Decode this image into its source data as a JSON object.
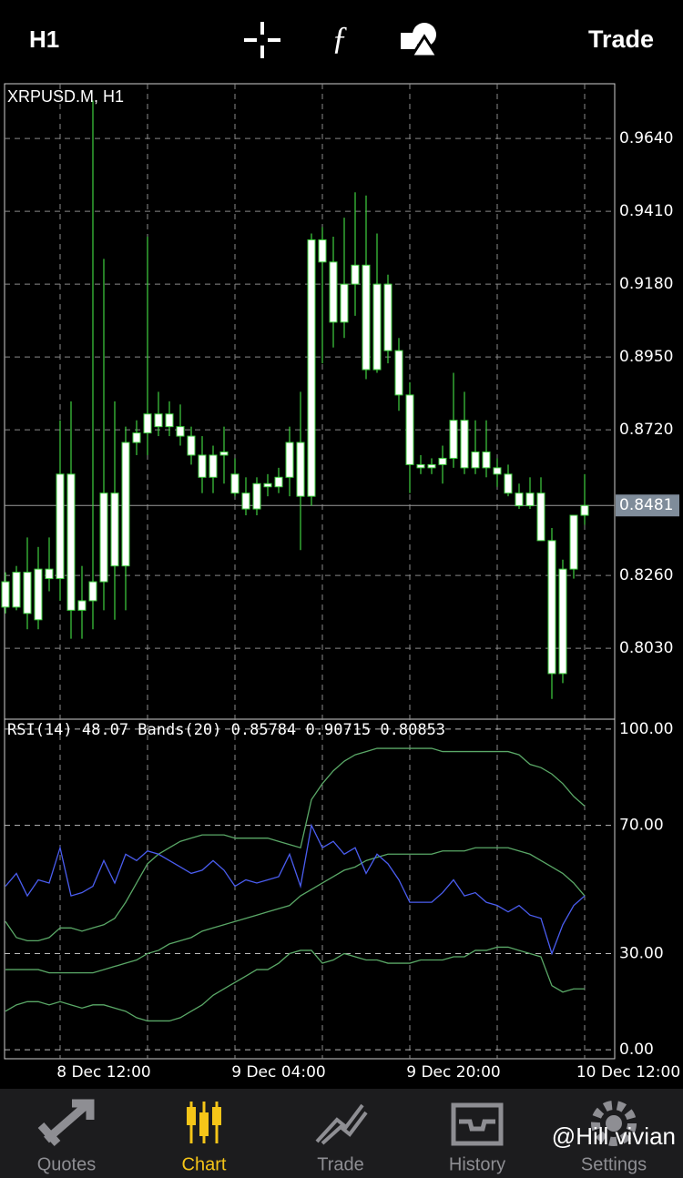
{
  "top_bar": {
    "timeframe": "H1",
    "action": "Trade"
  },
  "chart_data": [
    {
      "type": "candlestick",
      "title": "XRPUSD.M, H1",
      "categories": [
        null,
        null,
        null,
        null,
        null,
        "8 Dec 12:00",
        null,
        null,
        null,
        null,
        null,
        null,
        null,
        null,
        null,
        null,
        null,
        null,
        null,
        null,
        null,
        "9 Dec 04:00",
        null,
        null,
        null,
        null,
        null,
        null,
        null,
        null,
        null,
        null,
        null,
        null,
        null,
        null,
        null,
        "9 Dec 20:00",
        null,
        null,
        null,
        null,
        null,
        null,
        null,
        null,
        null,
        null,
        null,
        null,
        null,
        null,
        null,
        "10 Dec 12:00"
      ],
      "open": [
        0.816,
        0.827,
        0.827,
        0.828,
        0.825,
        0.825,
        0.858,
        0.815,
        0.818,
        0.824,
        0.852,
        0.829,
        0.868,
        0.871,
        0.873,
        0.877,
        0.873,
        0.87,
        0.864,
        0.857,
        0.864,
        0.858,
        0.852,
        0.847,
        0.855,
        0.854,
        0.857,
        0.868,
        0.851,
        0.932,
        0.925,
        0.906,
        0.918,
        0.924,
        0.891,
        0.918,
        0.897,
        0.883,
        0.861,
        0.86,
        0.861,
        0.863,
        0.875,
        0.86,
        0.865,
        0.86,
        0.858,
        0.852,
        0.848,
        0.852,
        0.837,
        0.795,
        0.828,
        0.845
      ],
      "high": [
        0.827,
        0.829,
        0.838,
        0.835,
        0.838,
        0.875,
        0.881,
        0.829,
        0.976,
        0.926,
        0.881,
        0.873,
        0.875,
        0.933,
        0.884,
        0.881,
        0.88,
        0.873,
        0.87,
        0.867,
        0.873,
        0.863,
        0.857,
        0.857,
        0.858,
        0.86,
        0.873,
        0.884,
        0.934,
        0.936,
        0.933,
        0.939,
        0.947,
        0.946,
        0.934,
        0.921,
        0.901,
        0.887,
        0.864,
        0.863,
        0.867,
        0.89,
        0.884,
        0.875,
        0.875,
        0.863,
        0.861,
        0.855,
        0.857,
        0.857,
        0.841,
        0.831,
        0.845,
        0.858
      ],
      "low": [
        0.814,
        0.815,
        0.809,
        0.809,
        0.821,
        0.818,
        0.806,
        0.806,
        0.809,
        0.815,
        0.812,
        0.815,
        0.864,
        0.864,
        0.87,
        0.87,
        0.867,
        0.861,
        0.852,
        0.852,
        0.855,
        0.851,
        0.845,
        0.845,
        0.851,
        0.852,
        0.851,
        0.834,
        0.848,
        0.893,
        0.898,
        0.901,
        0.908,
        0.888,
        0.89,
        0.893,
        0.878,
        0.852,
        0.858,
        0.858,
        0.855,
        0.86,
        0.858,
        0.858,
        0.857,
        0.854,
        0.851,
        0.847,
        0.847,
        0.837,
        0.787,
        0.792,
        0.825,
        0.842
      ],
      "close": [
        0.824,
        0.816,
        0.814,
        0.812,
        0.828,
        0.858,
        0.815,
        0.818,
        0.824,
        0.852,
        0.829,
        0.868,
        0.871,
        0.877,
        0.877,
        0.873,
        0.87,
        0.864,
        0.857,
        0.864,
        0.865,
        0.852,
        0.847,
        0.855,
        0.854,
        0.857,
        0.868,
        0.851,
        0.932,
        0.925,
        0.906,
        0.918,
        0.924,
        0.891,
        0.918,
        0.897,
        0.883,
        0.861,
        0.86,
        0.861,
        0.863,
        0.875,
        0.86,
        0.865,
        0.86,
        0.858,
        0.852,
        0.848,
        0.852,
        0.837,
        0.795,
        0.828,
        0.845,
        0.8481
      ],
      "body_color": "#ffffff",
      "wick_color": "#3fd03f",
      "ylim": [
        0.7806,
        0.9813
      ],
      "yticks": [
        {
          "value": 0.964,
          "label": "0.9640"
        },
        {
          "value": 0.941,
          "label": "0.9410"
        },
        {
          "value": 0.918,
          "label": "0.9180"
        },
        {
          "value": 0.895,
          "label": "0.8950"
        },
        {
          "value": 0.872,
          "label": "0.8720"
        },
        {
          "value": 0.826,
          "label": "0.8260"
        },
        {
          "value": 0.803,
          "label": "0.8030"
        }
      ],
      "current_price": {
        "value": 0.8481,
        "label": "0.8481"
      },
      "grid": true
    },
    {
      "type": "line",
      "title": "RSI(14) 48.07 Bands(20) 0.85784 0.90715 0.80853",
      "series": [
        {
          "name": "RSI(14)",
          "color": "#4a5df0",
          "values": [
            51,
            55,
            48,
            53,
            52,
            63,
            48,
            49,
            51,
            59,
            52,
            61,
            59,
            62,
            61,
            59,
            57,
            55,
            56,
            59,
            56,
            51,
            53,
            52,
            53,
            54,
            61,
            51,
            70,
            63,
            65,
            61,
            63,
            55,
            61,
            58,
            53,
            46,
            46,
            46,
            49,
            53,
            48,
            49,
            46,
            45,
            43,
            45,
            42,
            41,
            30,
            39,
            45,
            48
          ]
        },
        {
          "name": "Upper band",
          "color": "#5aa867",
          "values": [
            40,
            35,
            34,
            34,
            35,
            38,
            38,
            37,
            38,
            39,
            41,
            46,
            52,
            58,
            61,
            63,
            65,
            66,
            67,
            67,
            67,
            66,
            66,
            66,
            66,
            65,
            64,
            63,
            78,
            83,
            87,
            90,
            92,
            93,
            94,
            94,
            94,
            94,
            94,
            94,
            93,
            93,
            93,
            93,
            93,
            93,
            93,
            92,
            89,
            88,
            86,
            83,
            79,
            76
          ]
        },
        {
          "name": "Middle band",
          "color": "#5aa867",
          "values": [
            25,
            25,
            25,
            25,
            24,
            24,
            24,
            24,
            24,
            25,
            26,
            27,
            28,
            30,
            31,
            33,
            34,
            35,
            37,
            38,
            39,
            40,
            41,
            42,
            43,
            44,
            45,
            48,
            50,
            52,
            54,
            56,
            57,
            59,
            60,
            61,
            61,
            61,
            61,
            61,
            62,
            62,
            62,
            63,
            63,
            63,
            63,
            62,
            61,
            59,
            57,
            55,
            52,
            48
          ]
        },
        {
          "name": "Lower band",
          "color": "#5aa867",
          "values": [
            12,
            14,
            15,
            15,
            14,
            15,
            14,
            13,
            14,
            14,
            13,
            12,
            10,
            9,
            9,
            9,
            10,
            12,
            14,
            17,
            19,
            21,
            23,
            25,
            25,
            27,
            30,
            31,
            31,
            27,
            28,
            30,
            29,
            28,
            28,
            27,
            27,
            27,
            28,
            28,
            28,
            29,
            29,
            31,
            31,
            32,
            32,
            31,
            30,
            29,
            20,
            18,
            19,
            19
          ]
        }
      ],
      "ylim": [
        -2.8,
        103.1
      ],
      "yticks": [
        {
          "value": 100,
          "label": "100.00"
        },
        {
          "value": 70,
          "label": "70.00"
        },
        {
          "value": 30,
          "label": "30.00"
        },
        {
          "value": 0,
          "label": "0.00"
        }
      ],
      "grid": true
    }
  ],
  "tab_bar": {
    "tabs": [
      "Quotes",
      "Chart",
      "Trade",
      "History",
      "Settings"
    ],
    "active": 1
  },
  "watermark": "@Hill vivian"
}
